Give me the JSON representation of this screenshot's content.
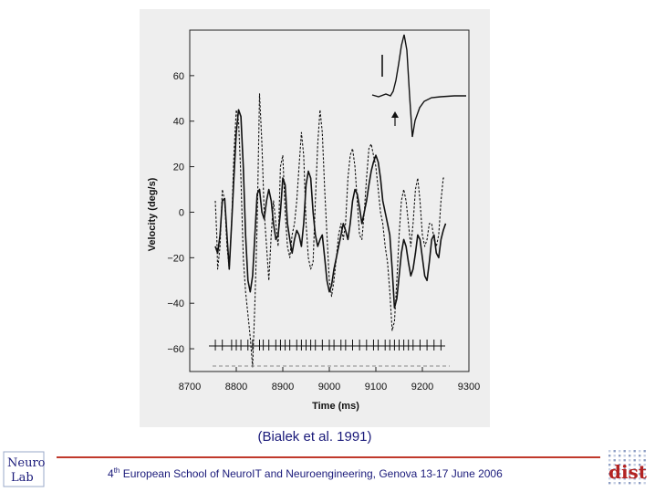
{
  "chart_data": {
    "type": "line",
    "title": "",
    "xlabel": "Time (ms)",
    "ylabel": "Velocity (deg/s)",
    "xlim": [
      8700,
      9300
    ],
    "ylim": [
      -70,
      80
    ],
    "x_ticks": [
      8700,
      8800,
      8900,
      9000,
      9100,
      9200,
      9300
    ],
    "y_ticks": [
      60,
      40,
      20,
      0,
      -20,
      -40,
      -60
    ],
    "series": [
      {
        "style": "solid",
        "x": [
          8755,
          8760,
          8765,
          8770,
          8775,
          8780,
          8785,
          8790,
          8795,
          8800,
          8805,
          8810,
          8815,
          8820,
          8825,
          8830,
          8835,
          8840,
          8845,
          8850,
          8855,
          8860,
          8865,
          8870,
          8875,
          8880,
          8885,
          8890,
          8895,
          8900,
          8905,
          8910,
          8915,
          8920,
          8925,
          8930,
          8935,
          8940,
          8945,
          8950,
          8955,
          8960,
          8965,
          8970,
          8975,
          8980,
          8985,
          8990,
          8995,
          9000,
          9005,
          9010,
          9015,
          9020,
          9025,
          9030,
          9035,
          9040,
          9045,
          9050,
          9055,
          9060,
          9065,
          9070,
          9075,
          9080,
          9085,
          9090,
          9095,
          9100,
          9105,
          9110,
          9115,
          9120,
          9125,
          9130,
          9135,
          9140,
          9145,
          9150,
          9155,
          9160,
          9165,
          9170,
          9175,
          9180,
          9185,
          9190,
          9195,
          9200,
          9205,
          9210,
          9215,
          9220,
          9225,
          9230,
          9235,
          9240,
          9245,
          9250
        ],
        "y": [
          -15,
          -18,
          -10,
          5,
          6,
          -10,
          -25,
          -5,
          15,
          35,
          45,
          42,
          20,
          -10,
          -30,
          -35,
          -28,
          -10,
          8,
          10,
          0,
          -3,
          5,
          10,
          5,
          -5,
          -12,
          -10,
          0,
          15,
          12,
          -5,
          -12,
          -18,
          -12,
          -8,
          -10,
          -15,
          -5,
          12,
          18,
          15,
          0,
          -10,
          -15,
          -12,
          -10,
          -20,
          -30,
          -35,
          -32,
          -25,
          -20,
          -15,
          -10,
          -5,
          -8,
          -12,
          -5,
          5,
          10,
          8,
          2,
          -5,
          0,
          5,
          12,
          18,
          22,
          25,
          22,
          15,
          5,
          0,
          -5,
          -10,
          -25,
          -42,
          -38,
          -28,
          -18,
          -12,
          -15,
          -22,
          -28,
          -25,
          -18,
          -10,
          -12,
          -20,
          -28,
          -30,
          -22,
          -12,
          -10,
          -18,
          -20,
          -12,
          -8,
          -5
        ]
      },
      {
        "style": "dashed",
        "x": [
          8755,
          8758,
          8760,
          8765,
          8770,
          8775,
          8780,
          8785,
          8790,
          8795,
          8800,
          8805,
          8810,
          8815,
          8820,
          8825,
          8830,
          8835,
          8840,
          8845,
          8850,
          8855,
          8860,
          8865,
          8870,
          8875,
          8880,
          8885,
          8890,
          8895,
          8900,
          8905,
          8910,
          8915,
          8920,
          8925,
          8930,
          8935,
          8940,
          8945,
          8950,
          8955,
          8960,
          8965,
          8970,
          8975,
          8980,
          8985,
          8990,
          8995,
          9000,
          9005,
          9010,
          9015,
          9020,
          9025,
          9030,
          9035,
          9040,
          9045,
          9050,
          9055,
          9060,
          9065,
          9070,
          9075,
          9080,
          9085,
          9090,
          9095,
          9100,
          9105,
          9110,
          9115,
          9120,
          9125,
          9130,
          9135,
          9140,
          9145,
          9150,
          9155,
          9160,
          9165,
          9170,
          9175,
          9180,
          9185,
          9190,
          9195,
          9200,
          9205,
          9210,
          9215,
          9220,
          9225,
          9230,
          9235,
          9240,
          9245,
          9250
        ],
        "y": [
          5,
          -10,
          -25,
          -15,
          10,
          5,
          -15,
          -25,
          -5,
          25,
          45,
          40,
          15,
          -20,
          -35,
          -45,
          -55,
          -68,
          -40,
          -5,
          52,
          30,
          0,
          -15,
          -30,
          -10,
          5,
          -5,
          -15,
          20,
          25,
          0,
          -15,
          -20,
          -10,
          -5,
          5,
          20,
          35,
          25,
          -5,
          -20,
          -25,
          -22,
          5,
          30,
          45,
          35,
          10,
          -10,
          -30,
          -37,
          -30,
          -20,
          -10,
          -5,
          -12,
          -5,
          15,
          25,
          28,
          20,
          5,
          -10,
          -12,
          0,
          15,
          28,
          30,
          25,
          20,
          10,
          0,
          -5,
          -15,
          -22,
          -35,
          -52,
          -48,
          -30,
          -10,
          5,
          10,
          5,
          -5,
          -15,
          -5,
          10,
          15,
          5,
          -10,
          -15,
          -12,
          -5,
          -5,
          -12,
          -15,
          -10,
          5,
          15,
          15
        ]
      }
    ],
    "inset": {
      "scale_bar_label": "|",
      "arrow_label": "↑"
    }
  },
  "citation": "(Bialek et al. 1991)",
  "footer": {
    "ordinal_num": "4",
    "ordinal_sup": "th",
    "text": " European School of NeuroIT and Neuroengineering, Genova 13-17 June 2006"
  },
  "logos": {
    "left_line1": "Neuro",
    "left_line2": "Lab",
    "right_text": "dist"
  },
  "colors": {
    "panel_bg": "#eeeeee",
    "footer_rule": "#c0392b",
    "text_blue": "#1a1a7a"
  }
}
